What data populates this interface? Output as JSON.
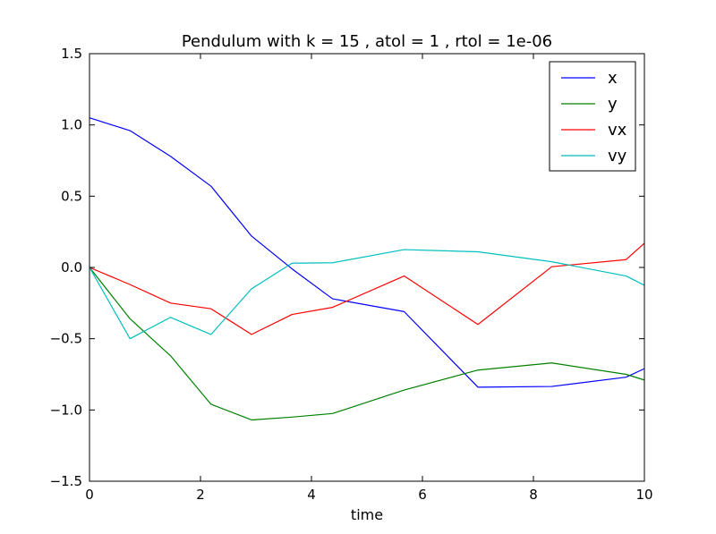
{
  "chart_data": {
    "type": "line",
    "title": "Pendulum with k = 15 , atol = 1 , rtol = 1e-06",
    "xlabel": "time",
    "ylabel": "",
    "xlim": [
      0,
      10
    ],
    "ylim": [
      -1.5,
      1.5
    ],
    "xticks": [
      0,
      2,
      4,
      6,
      8,
      10
    ],
    "xtick_labels": [
      "0",
      "2",
      "4",
      "6",
      "8",
      "10"
    ],
    "yticks": [
      1.5,
      1.0,
      0.5,
      0.0,
      -0.5,
      -1.0,
      -1.5
    ],
    "ytick_labels": [
      "1.5",
      "1.0",
      "0.5",
      "0.0",
      "−0.5",
      "−1.0",
      "−1.5"
    ],
    "grid": false,
    "legend_position": "top-right",
    "x": [
      0,
      0.73,
      1.46,
      2.19,
      2.92,
      3.65,
      4.38,
      5.67,
      7.0,
      8.33,
      9.67,
      10.0
    ],
    "series": [
      {
        "name": "x",
        "color": "#0000ff",
        "values": [
          1.05,
          0.96,
          0.78,
          0.57,
          0.22,
          -0.01,
          -0.22,
          -0.31,
          -0.84,
          -0.835,
          -0.77,
          -0.71
        ]
      },
      {
        "name": "y",
        "color": "#008000",
        "values": [
          0.0,
          -0.36,
          -0.62,
          -0.96,
          -1.07,
          -1.05,
          -1.025,
          -0.86,
          -0.72,
          -0.67,
          -0.75,
          -0.79
        ]
      },
      {
        "name": "vx",
        "color": "#ff0000",
        "values": [
          0.0,
          -0.12,
          -0.25,
          -0.29,
          -0.47,
          -0.33,
          -0.28,
          -0.06,
          -0.4,
          0.005,
          0.055,
          0.17
        ]
      },
      {
        "name": "vy",
        "color": "#00bfbf",
        "values": [
          0.0,
          -0.5,
          -0.35,
          -0.47,
          -0.15,
          0.03,
          0.033,
          0.125,
          0.11,
          0.04,
          -0.06,
          -0.125
        ]
      }
    ]
  }
}
